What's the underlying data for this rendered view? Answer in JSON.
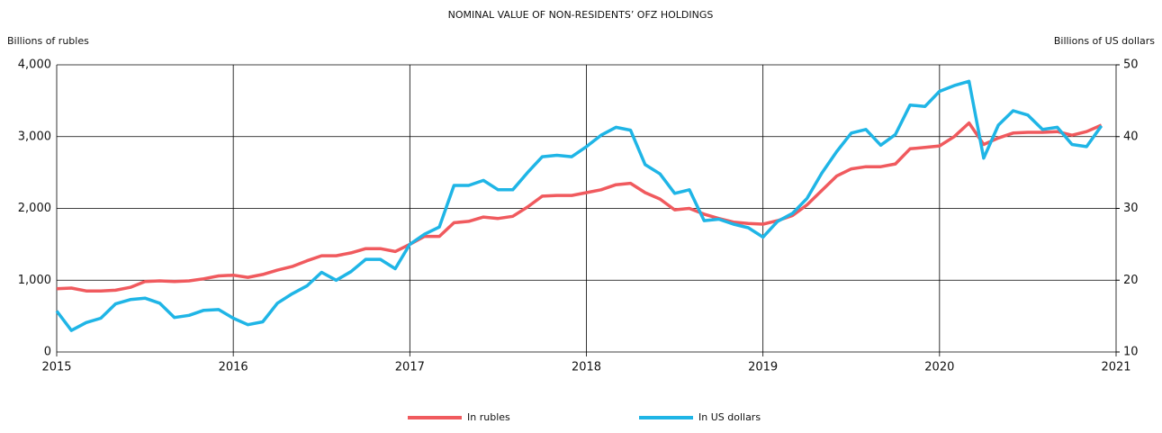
{
  "chart_data": {
    "type": "line",
    "title": "NOMINAL VALUE OF NON-RESIDENTS’ OFZ HOLDINGS",
    "ylabel": "Billions of rubles",
    "y2label": "Billions of US dollars",
    "x": [
      2015,
      2015.083,
      2015.167,
      2015.25,
      2015.333,
      2015.417,
      2015.5,
      2015.583,
      2015.667,
      2015.75,
      2015.833,
      2015.917,
      2016,
      2016.083,
      2016.167,
      2016.25,
      2016.333,
      2016.417,
      2016.5,
      2016.583,
      2016.667,
      2016.75,
      2016.833,
      2016.917,
      2017,
      2017.083,
      2017.167,
      2017.25,
      2017.333,
      2017.417,
      2017.5,
      2017.583,
      2017.667,
      2017.75,
      2017.833,
      2017.917,
      2018,
      2018.083,
      2018.167,
      2018.25,
      2018.333,
      2018.417,
      2018.5,
      2018.583,
      2018.667,
      2018.75,
      2018.833,
      2018.917,
      2019,
      2019.083,
      2019.167,
      2019.25,
      2019.333,
      2019.417,
      2019.5,
      2019.583,
      2019.667,
      2019.75,
      2019.833,
      2019.917,
      2020,
      2020.083,
      2020.167,
      2020.25,
      2020.333,
      2020.417,
      2020.5,
      2020.583,
      2020.667,
      2020.75,
      2020.833,
      2020.917
    ],
    "series": [
      {
        "name": "In rubles",
        "color": "#f05a5e",
        "values": [
          880,
          890,
          850,
          850,
          860,
          900,
          980,
          990,
          980,
          990,
          1020,
          1060,
          1070,
          1040,
          1080,
          1140,
          1190,
          1270,
          1340,
          1340,
          1380,
          1440,
          1440,
          1400,
          1500,
          1610,
          1610,
          1800,
          1820,
          1880,
          1860,
          1890,
          2020,
          2170,
          2180,
          2180,
          2220,
          2260,
          2330,
          2350,
          2220,
          2130,
          1980,
          2000,
          1920,
          1860,
          1810,
          1790,
          1780,
          1830,
          1900,
          2050,
          2250,
          2450,
          2550,
          2580,
          2580,
          2620,
          2830,
          2850,
          2870,
          3000,
          3190,
          2890,
          2980,
          3050,
          3060,
          3060,
          3070,
          3020,
          3070,
          3160
        ]
      },
      {
        "name": "In US dollars",
        "color": "#1fb5e6",
        "axis": "y2",
        "values": [
          15.7,
          13.0,
          14.1,
          14.7,
          16.7,
          17.3,
          17.5,
          16.8,
          14.8,
          15.1,
          15.8,
          15.9,
          14.7,
          13.8,
          14.2,
          16.8,
          18.1,
          19.2,
          21.1,
          20.0,
          21.2,
          22.9,
          22.9,
          21.6,
          25.0,
          26.4,
          27.4,
          33.2,
          33.2,
          33.9,
          32.6,
          32.6,
          35.0,
          37.2,
          37.4,
          37.2,
          38.6,
          40.2,
          41.3,
          40.9,
          36.1,
          34.8,
          32.1,
          32.6,
          28.3,
          28.5,
          27.8,
          27.3,
          26.0,
          28.2,
          29.3,
          31.4,
          34.9,
          37.9,
          40.5,
          41.0,
          38.8,
          40.3,
          44.4,
          44.2,
          46.3,
          47.1,
          47.7,
          37.0,
          41.6,
          43.6,
          43.0,
          41.0,
          41.3,
          38.9,
          38.6,
          41.5
        ]
      }
    ],
    "xlim": [
      2015,
      2021
    ],
    "xticks": [
      2015,
      2016,
      2017,
      2018,
      2019,
      2020,
      2021
    ],
    "ylim": [
      0,
      4000
    ],
    "yticks": [
      0,
      {
        "value": 1000,
        "label": "1,000"
      },
      {
        "value": 2000,
        "label": "2,000"
      },
      {
        "value": 3000,
        "label": "3,000"
      },
      {
        "value": 4000,
        "label": "4,000"
      }
    ],
    "y2lim": [
      10,
      50
    ],
    "y2ticks": [
      10,
      20,
      30,
      40,
      50
    ],
    "grid": true,
    "legend": "bottom"
  }
}
